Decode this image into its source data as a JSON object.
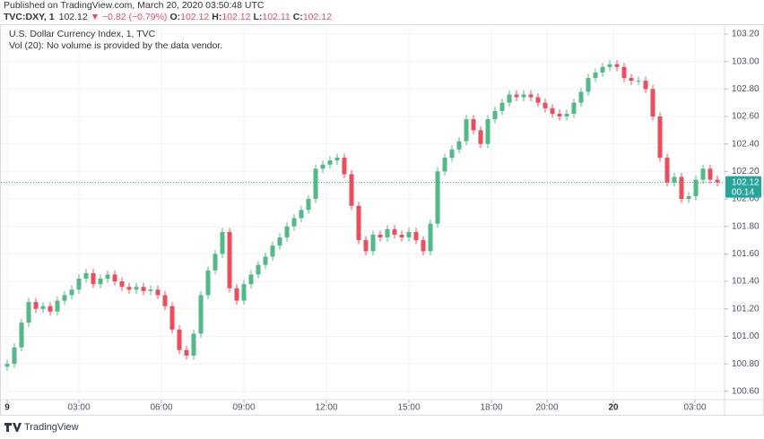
{
  "header": {
    "published": "Published on TradingView.com, March 20, 2020 03:50:48 UTC",
    "symbol": "TVC:DXY, 1",
    "price": "102.12",
    "change": "▼ −0.82 (−0.79%)",
    "ohlc": [
      {
        "label": "O:",
        "value": "102.12"
      },
      {
        "label": "H:",
        "value": "102.12"
      },
      {
        "label": "L:",
        "value": "102.11"
      },
      {
        "label": "C:",
        "value": "102.12"
      }
    ]
  },
  "chart_data": {
    "type": "candlestick",
    "title": "U.S. Dollar Currency Index, 1, TVC",
    "subtitle": "Vol (20): No volume is provided by the data vendor.",
    "up_color": "#53b987",
    "down_color": "#eb4d5c",
    "grid": true,
    "xlim": [
      -0.25,
      100
    ],
    "xticks": [
      {
        "value": 0,
        "label": "9"
      },
      {
        "value": 10,
        "label": "03:00"
      },
      {
        "value": 21.5,
        "label": "06:00"
      },
      {
        "value": 33,
        "label": "09:00"
      },
      {
        "value": 44.5,
        "label": "12:00"
      },
      {
        "value": 56,
        "label": "15:00"
      },
      {
        "value": 67.5,
        "label": "18:00"
      },
      {
        "value": 75.25,
        "label": "20:00"
      },
      {
        "value": 84.5,
        "label": "20"
      },
      {
        "value": 95.875,
        "label": "03:00"
      }
    ],
    "ylim": [
      100.54,
      103.265
    ],
    "yticks": [
      {
        "value": 100.6,
        "label": "100.60"
      },
      {
        "value": 100.8,
        "label": "100.80"
      },
      {
        "value": 101,
        "label": "101.00"
      },
      {
        "value": 101.2,
        "label": "101.20"
      },
      {
        "value": 101.4,
        "label": "101.40"
      },
      {
        "value": 101.6,
        "label": "101.60"
      },
      {
        "value": 101.8,
        "label": "101.80"
      },
      {
        "value": 102,
        "label": "102.00"
      },
      {
        "value": 102.2,
        "label": "102.20"
      },
      {
        "value": 102.4,
        "label": "102.40"
      },
      {
        "value": 102.6,
        "label": "102.60"
      },
      {
        "value": 102.8,
        "label": "102.80"
      },
      {
        "value": 103,
        "label": "103.00"
      },
      {
        "value": 103.2,
        "label": "103.20"
      }
    ],
    "last_price": 102.12,
    "last_price_color": "#26a69a",
    "countdown": "00:14",
    "open": [
      100.78,
      100.8,
      100.92,
      101.1,
      101.25,
      101.2,
      101.22,
      101.18,
      101.26,
      101.3,
      101.34,
      101.42,
      101.46,
      101.38,
      101.42,
      101.45,
      101.4,
      101.36,
      101.34,
      101.36,
      101.33,
      101.34,
      101.3,
      101.22,
      101.05,
      100.9,
      100.86,
      101.02,
      101.3,
      101.48,
      101.6,
      101.76,
      101.35,
      101.26,
      101.38,
      101.45,
      101.52,
      101.58,
      101.66,
      101.72,
      101.8,
      101.86,
      101.92,
      102.0,
      102.22,
      102.25,
      102.28,
      102.3,
      102.18,
      101.95,
      101.7,
      101.62,
      101.74,
      101.72,
      101.78,
      101.74,
      101.72,
      101.76,
      101.7,
      101.62,
      101.82,
      102.2,
      102.3,
      102.36,
      102.42,
      102.58,
      102.5,
      102.4,
      102.58,
      102.64,
      102.7,
      102.76,
      102.74,
      102.76,
      102.74,
      102.7,
      102.66,
      102.62,
      102.6,
      102.62,
      102.7,
      102.78,
      102.88,
      102.92,
      102.96,
      102.98,
      102.96,
      102.88,
      102.86,
      102.86,
      102.8,
      102.6,
      102.3,
      102.12,
      102.16,
      102.0,
      102.02,
      102.14,
      102.22,
      102.14
    ],
    "high": [
      100.83,
      100.95,
      101.13,
      101.28,
      101.28,
      101.25,
      101.25,
      101.29,
      101.33,
      101.37,
      101.45,
      101.49,
      101.49,
      101.45,
      101.48,
      101.48,
      101.43,
      101.39,
      101.39,
      101.39,
      101.37,
      101.37,
      101.33,
      101.25,
      101.08,
      100.93,
      101.05,
      101.33,
      101.51,
      101.63,
      101.79,
      101.79,
      101.38,
      101.41,
      101.48,
      101.55,
      101.61,
      101.69,
      101.75,
      101.83,
      101.89,
      101.95,
      102.03,
      102.25,
      102.28,
      102.31,
      102.33,
      102.33,
      102.21,
      101.98,
      101.73,
      101.77,
      101.77,
      101.81,
      101.81,
      101.77,
      101.79,
      101.79,
      101.73,
      101.85,
      102.23,
      102.33,
      102.39,
      102.45,
      102.61,
      102.61,
      102.53,
      102.61,
      102.67,
      102.73,
      102.79,
      102.79,
      102.79,
      102.79,
      102.77,
      102.73,
      102.69,
      102.65,
      102.65,
      102.73,
      102.81,
      102.91,
      102.95,
      102.99,
      103.01,
      103.01,
      102.99,
      102.91,
      102.89,
      102.89,
      102.83,
      102.63,
      102.33,
      102.19,
      102.19,
      102.05,
      102.17,
      102.25,
      102.25,
      102.17
    ],
    "low": [
      100.75,
      100.77,
      100.89,
      101.07,
      101.17,
      101.17,
      101.15,
      101.15,
      101.23,
      101.27,
      101.31,
      101.39,
      101.35,
      101.35,
      101.39,
      101.37,
      101.33,
      101.31,
      101.31,
      101.3,
      101.3,
      101.27,
      101.19,
      101.02,
      100.87,
      100.83,
      100.83,
      100.99,
      101.27,
      101.45,
      101.57,
      101.32,
      101.23,
      101.23,
      101.35,
      101.42,
      101.49,
      101.55,
      101.63,
      101.69,
      101.77,
      101.83,
      101.89,
      101.97,
      102.19,
      102.22,
      102.25,
      102.15,
      101.92,
      101.67,
      101.59,
      101.59,
      101.69,
      101.69,
      101.71,
      101.69,
      101.69,
      101.67,
      101.59,
      101.59,
      101.79,
      102.17,
      102.27,
      102.33,
      102.39,
      102.47,
      102.37,
      102.37,
      102.55,
      102.61,
      102.67,
      102.71,
      102.71,
      102.71,
      102.67,
      102.63,
      102.59,
      102.57,
      102.57,
      102.59,
      102.67,
      102.75,
      102.85,
      102.89,
      102.93,
      102.93,
      102.85,
      102.83,
      102.83,
      102.77,
      102.57,
      102.27,
      102.09,
      102.09,
      101.97,
      101.97,
      101.99,
      102.11,
      102.11,
      102.09
    ],
    "close": [
      100.8,
      100.92,
      101.1,
      101.25,
      101.2,
      101.22,
      101.18,
      101.26,
      101.3,
      101.34,
      101.42,
      101.46,
      101.38,
      101.42,
      101.45,
      101.4,
      101.36,
      101.34,
      101.36,
      101.33,
      101.34,
      101.3,
      101.22,
      101.05,
      100.9,
      100.86,
      101.02,
      101.3,
      101.48,
      101.6,
      101.76,
      101.35,
      101.26,
      101.38,
      101.45,
      101.52,
      101.58,
      101.66,
      101.72,
      101.8,
      101.86,
      101.92,
      102.0,
      102.22,
      102.25,
      102.28,
      102.3,
      102.18,
      101.95,
      101.7,
      101.62,
      101.74,
      101.72,
      101.78,
      101.74,
      101.72,
      101.76,
      101.7,
      101.62,
      101.82,
      102.2,
      102.3,
      102.36,
      102.42,
      102.58,
      102.5,
      102.4,
      102.58,
      102.64,
      102.7,
      102.76,
      102.74,
      102.76,
      102.74,
      102.7,
      102.66,
      102.62,
      102.6,
      102.62,
      102.7,
      102.78,
      102.88,
      102.92,
      102.96,
      102.98,
      102.96,
      102.88,
      102.86,
      102.86,
      102.8,
      102.6,
      102.3,
      102.12,
      102.16,
      102.0,
      102.02,
      102.14,
      102.22,
      102.14,
      102.12
    ]
  },
  "footer": {
    "brand": "TradingView"
  }
}
